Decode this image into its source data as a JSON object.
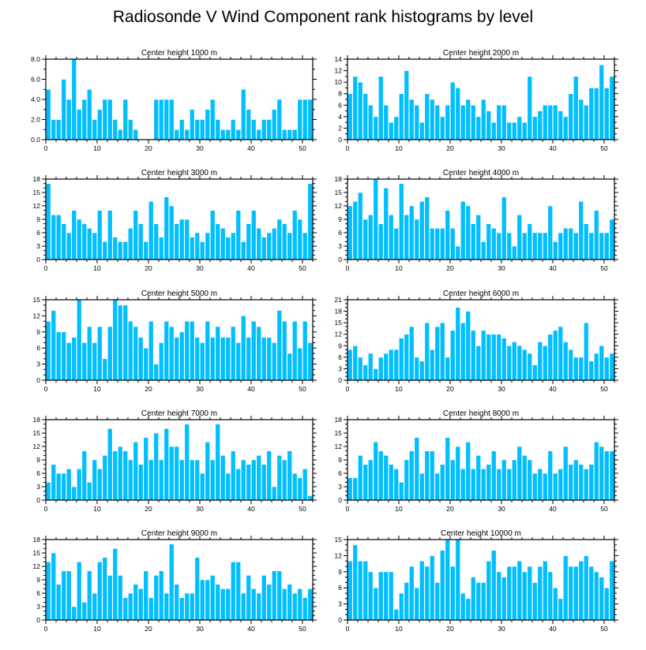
{
  "colors": {
    "bar": "#00bfff",
    "axis": "#000000",
    "background": "#ffffff"
  },
  "chart_data": {
    "title": "Radiosonde V Wind Component rank histograms by level",
    "type": "bar",
    "categories": [
      0,
      1,
      2,
      3,
      4,
      5,
      6,
      7,
      8,
      9,
      10,
      11,
      12,
      13,
      14,
      15,
      16,
      17,
      18,
      19,
      20,
      21,
      22,
      23,
      24,
      25,
      26,
      27,
      28,
      29,
      30,
      31,
      32,
      33,
      34,
      35,
      36,
      37,
      38,
      39,
      40,
      41,
      42,
      43,
      44,
      45,
      46,
      47,
      48,
      49,
      50,
      51
    ],
    "xlim": [
      0,
      52
    ],
    "xticks": [
      0,
      10,
      20,
      30,
      40,
      50
    ],
    "panels": [
      {
        "title": "Center height 1000 m",
        "ylim": [
          0,
          8
        ],
        "yticks": [
          0,
          2,
          4,
          6,
          8
        ],
        "ytick_labels": [
          "0.0",
          "2.0",
          "4.0",
          "6.0",
          "8.0"
        ],
        "values": [
          5,
          2,
          2,
          6,
          4,
          8,
          3,
          4,
          5,
          2,
          3,
          4,
          4,
          2,
          1,
          4,
          2,
          1,
          0,
          0,
          0,
          4,
          4,
          4,
          4,
          1,
          2,
          1,
          3,
          2,
          2,
          3,
          4,
          2,
          1,
          1,
          2,
          1,
          5,
          3,
          2,
          1,
          2,
          2,
          3,
          4,
          1,
          1,
          1,
          4,
          4,
          4
        ]
      },
      {
        "title": "Center height 2000 m",
        "ylim": [
          0,
          14
        ],
        "yticks": [
          0,
          2,
          4,
          6,
          8,
          10,
          12,
          14
        ],
        "ytick_labels": [
          "0",
          "2",
          "4",
          "6",
          "8",
          "10",
          "12",
          "14"
        ],
        "values": [
          8,
          11,
          10,
          8,
          6,
          4,
          11,
          6,
          3,
          4,
          8,
          12,
          7,
          6,
          3,
          8,
          7,
          6,
          4,
          6,
          10,
          9,
          6,
          7,
          6,
          4,
          7,
          5,
          3,
          6,
          6,
          3,
          3,
          4,
          3,
          11,
          4,
          5,
          6,
          6,
          6,
          5,
          4,
          8,
          11,
          7,
          6,
          9,
          9,
          13,
          9,
          11
        ]
      },
      {
        "title": "Center height 3000 m",
        "ylim": [
          0,
          18
        ],
        "yticks": [
          0,
          3,
          6,
          9,
          12,
          15,
          18
        ],
        "ytick_labels": [
          "0",
          "3",
          "6",
          "9",
          "12",
          "15",
          "18"
        ],
        "values": [
          17,
          10,
          10,
          8,
          6,
          11,
          9,
          8,
          7,
          6,
          11,
          4,
          11,
          5,
          4,
          4,
          7,
          11,
          8,
          4,
          13,
          8,
          5,
          14,
          12,
          8,
          9,
          9,
          5,
          6,
          4,
          6,
          11,
          8,
          7,
          5,
          6,
          11,
          4,
          8,
          11,
          7,
          5,
          6,
          7,
          9,
          8,
          6,
          11,
          9,
          6,
          17
        ]
      },
      {
        "title": "Center height 4000 m",
        "ylim": [
          0,
          18
        ],
        "yticks": [
          0,
          3,
          6,
          9,
          12,
          15,
          18
        ],
        "ytick_labels": [
          "0",
          "3",
          "6",
          "9",
          "12",
          "15",
          "18"
        ],
        "values": [
          12,
          13,
          15,
          9,
          10,
          18,
          8,
          16,
          10,
          7,
          17,
          10,
          12,
          9,
          13,
          14,
          7,
          7,
          7,
          11,
          7,
          3,
          13,
          12,
          8,
          10,
          4,
          8,
          7,
          6,
          14,
          6,
          3,
          10,
          6,
          8,
          6,
          6,
          6,
          12,
          4,
          6,
          7,
          7,
          6,
          13,
          8,
          6,
          11,
          6,
          6,
          9
        ]
      },
      {
        "title": "Center height 5000 m",
        "ylim": [
          0,
          15
        ],
        "yticks": [
          0,
          3,
          6,
          9,
          12,
          15
        ],
        "ytick_labels": [
          "0",
          "3",
          "6",
          "9",
          "12",
          "15"
        ],
        "values": [
          11,
          13,
          9,
          9,
          7,
          8,
          15,
          7,
          10,
          7,
          10,
          4,
          10,
          15,
          14,
          14,
          11,
          10,
          8,
          6,
          11,
          3,
          7,
          11,
          10,
          8,
          9,
          11,
          11,
          8,
          7,
          11,
          8,
          10,
          8,
          8,
          10,
          7,
          12,
          8,
          11,
          10,
          8,
          8,
          7,
          13,
          11,
          5,
          11,
          6,
          11,
          7
        ]
      },
      {
        "title": "Center height 6000 m",
        "ylim": [
          0,
          21
        ],
        "yticks": [
          0,
          3,
          6,
          9,
          12,
          15,
          18,
          21
        ],
        "ytick_labels": [
          "0",
          "3",
          "6",
          "9",
          "12",
          "15",
          "18",
          "21"
        ],
        "values": [
          8,
          9,
          6,
          4,
          7,
          3,
          6,
          7,
          8,
          8,
          11,
          12,
          14,
          6,
          5,
          15,
          8,
          14,
          15,
          6,
          13,
          19,
          15,
          18,
          13,
          9,
          13,
          12,
          12,
          12,
          11,
          9,
          10,
          9,
          8,
          7,
          4,
          10,
          9,
          12,
          13,
          14,
          10,
          8,
          6,
          6,
          15,
          5,
          7,
          9,
          6,
          7
        ]
      },
      {
        "title": "Center height 7000 m",
        "ylim": [
          0,
          18
        ],
        "yticks": [
          0,
          3,
          6,
          9,
          12,
          15,
          18
        ],
        "ytick_labels": [
          "0",
          "3",
          "6",
          "9",
          "12",
          "15",
          "18"
        ],
        "values": [
          4,
          8,
          6,
          6,
          7,
          3,
          7,
          11,
          4,
          9,
          7,
          10,
          16,
          11,
          12,
          11,
          9,
          13,
          8,
          14,
          9,
          15,
          9,
          16,
          12,
          12,
          9,
          17,
          9,
          9,
          6,
          13,
          9,
          17,
          10,
          6,
          11,
          7,
          9,
          8,
          9,
          10,
          8,
          11,
          3,
          10,
          9,
          11,
          6,
          5,
          7,
          1
        ]
      },
      {
        "title": "Center height 8000 m",
        "ylim": [
          0,
          18
        ],
        "yticks": [
          0,
          3,
          6,
          9,
          12,
          15,
          18
        ],
        "ytick_labels": [
          "0",
          "3",
          "6",
          "9",
          "12",
          "15",
          "18"
        ],
        "values": [
          5,
          5,
          10,
          8,
          9,
          13,
          11,
          10,
          8,
          7,
          4,
          9,
          11,
          14,
          6,
          11,
          11,
          6,
          8,
          14,
          9,
          12,
          7,
          13,
          7,
          10,
          7,
          8,
          11,
          7,
          9,
          7,
          9,
          12,
          10,
          9,
          6,
          7,
          6,
          11,
          6,
          7,
          12,
          8,
          9,
          8,
          7,
          8,
          13,
          12,
          11,
          11
        ]
      },
      {
        "title": "Center height 9000 m",
        "ylim": [
          0,
          18
        ],
        "yticks": [
          0,
          3,
          6,
          9,
          12,
          15,
          18
        ],
        "ytick_labels": [
          "0",
          "3",
          "6",
          "9",
          "12",
          "15",
          "18"
        ],
        "values": [
          13,
          15,
          8,
          11,
          11,
          3,
          13,
          4,
          11,
          6,
          13,
          14,
          10,
          16,
          10,
          5,
          6,
          8,
          7,
          11,
          5,
          10,
          11,
          6,
          17,
          8,
          5,
          6,
          6,
          14,
          9,
          9,
          10,
          8,
          7,
          7,
          13,
          13,
          6,
          10,
          7,
          6,
          10,
          8,
          11,
          11,
          7,
          8,
          6,
          7,
          5,
          7
        ]
      },
      {
        "title": "Center height 10000 m",
        "ylim": [
          0,
          15
        ],
        "yticks": [
          0,
          3,
          6,
          9,
          12,
          15
        ],
        "ytick_labels": [
          "0",
          "3",
          "6",
          "9",
          "12",
          "15"
        ],
        "values": [
          11,
          14,
          11,
          11,
          9,
          6,
          9,
          9,
          9,
          2,
          5,
          7,
          10,
          6,
          11,
          10,
          12,
          7,
          13,
          15,
          10,
          15,
          5,
          4,
          8,
          7,
          7,
          11,
          13,
          9,
          8,
          10,
          10,
          11,
          9,
          10,
          7,
          10,
          11,
          9,
          6,
          4,
          12,
          10,
          10,
          11,
          12,
          10,
          9,
          8,
          6,
          11
        ]
      }
    ]
  }
}
